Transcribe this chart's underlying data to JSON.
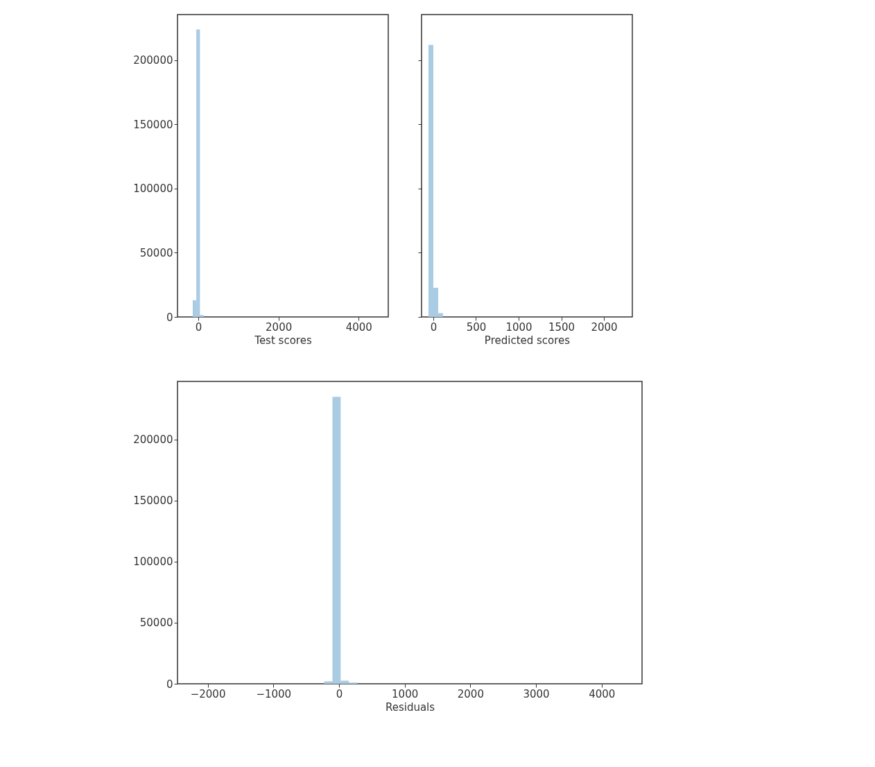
{
  "chart_data": [
    {
      "type": "histogram",
      "xlabel": "Test scores",
      "bins": [
        -140,
        -50,
        40,
        130,
        220
      ],
      "values": [
        13000,
        224000,
        1500,
        null
      ],
      "color": "#a9cbe4",
      "xlim": [
        -520,
        4740
      ],
      "xticks": [
        0,
        2000,
        4000
      ],
      "ylim": [
        0,
        235600
      ],
      "yticks": [
        0,
        50000,
        100000,
        150000,
        200000
      ],
      "grid": false
    },
    {
      "type": "histogram",
      "xlabel": "Predicted scores",
      "bins": [
        -57,
        0,
        57,
        114,
        171,
        228
      ],
      "values": [
        212000,
        22700,
        3000,
        null,
        null
      ],
      "color": "#a9cbe4",
      "xlim": [
        -138,
        2333
      ],
      "xticks": [
        0,
        500,
        1000,
        1500,
        2000
      ],
      "ylim": [
        0,
        235600
      ],
      "yticks": [
        0,
        50000,
        100000,
        150000,
        200000
      ],
      "tick_labels": "x",
      "grid": false
    },
    {
      "type": "histogram",
      "xlabel": "Residuals",
      "bins": [
        -350,
        -225,
        -100,
        25,
        150,
        275
      ],
      "values": [
        null,
        2000,
        235000,
        2500,
        1000
      ],
      "color": "#a9cbe4",
      "xlim": [
        -2460,
        4615
      ],
      "xticks": [
        -2000,
        -1000,
        0,
        1000,
        2000,
        3000,
        4000
      ],
      "ylim": [
        0,
        247700
      ],
      "yticks": [
        0,
        50000,
        100000,
        150000,
        200000
      ],
      "grid": false
    }
  ]
}
